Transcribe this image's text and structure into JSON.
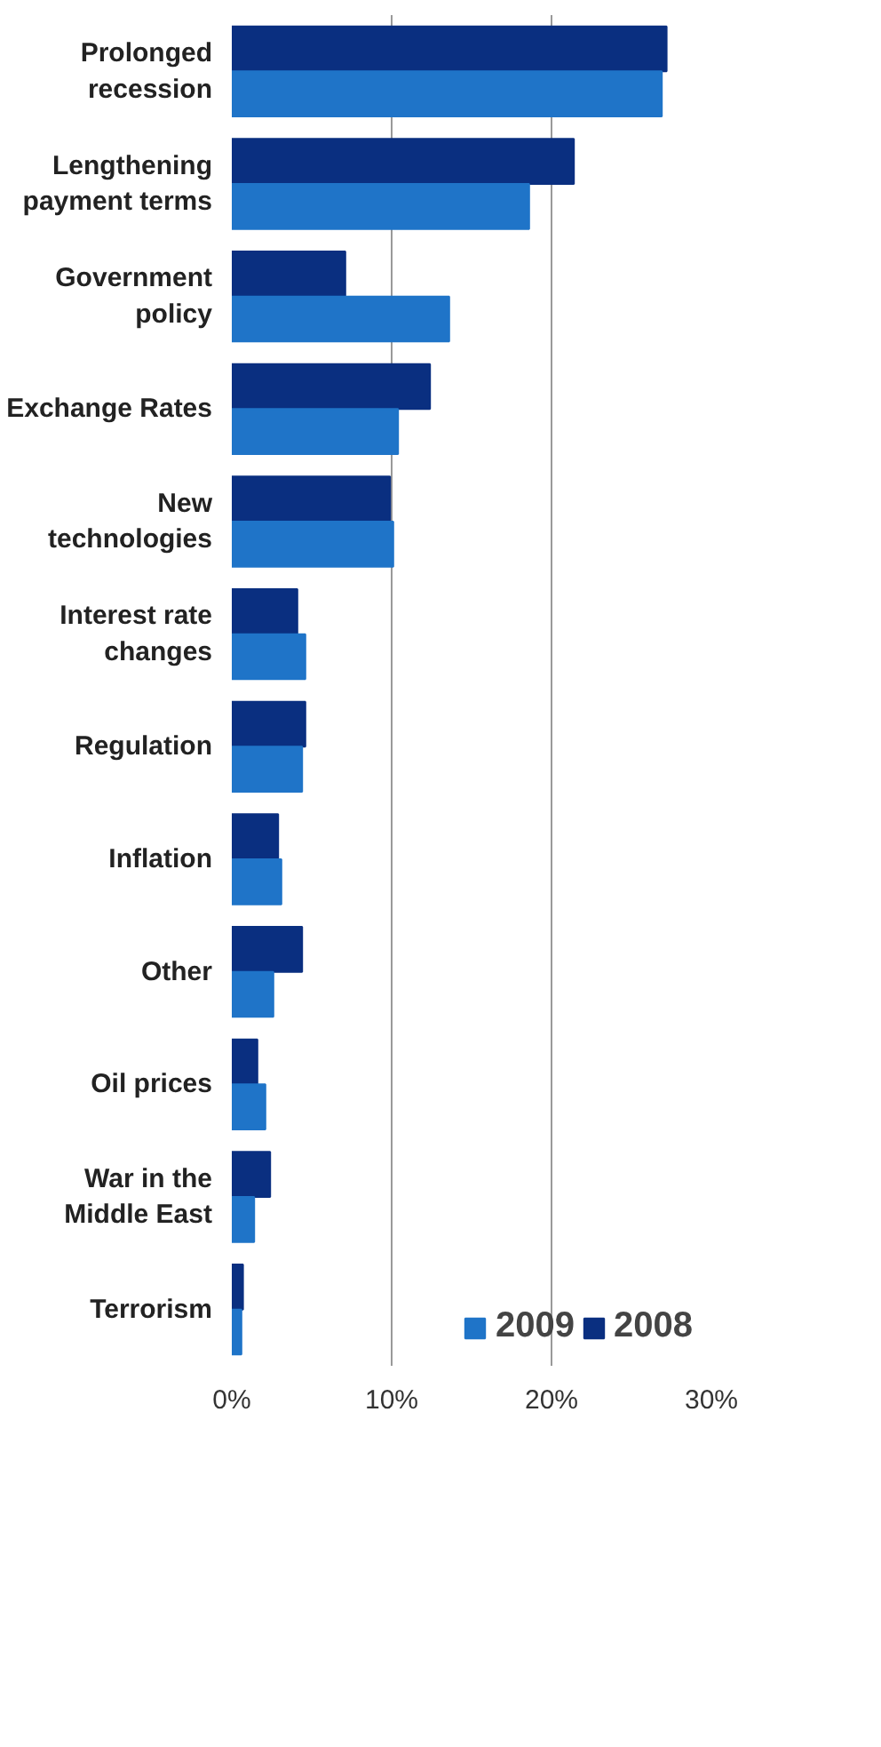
{
  "chart_data": {
    "type": "bar",
    "orientation": "horizontal",
    "categories": [
      "Prolonged\nrecession",
      "Lengthening\npayment terms",
      "Government\npolicy",
      "Exchange Rates",
      "New\ntechnologies",
      "Interest rate\nchanges",
      "Regulation",
      "Inflation",
      "Other",
      "Oil prices",
      "War in the\nMiddle East",
      "Terrorism"
    ],
    "series": [
      {
        "name": "2008",
        "color": "#0a2f80",
        "values": [
          27.2,
          21.4,
          7.1,
          12.4,
          9.9,
          4.1,
          4.6,
          2.9,
          4.4,
          1.6,
          2.4,
          0.7
        ]
      },
      {
        "name": "2009",
        "color": "#1f74c8",
        "values": [
          26.9,
          18.6,
          13.6,
          10.4,
          10.1,
          4.6,
          4.4,
          3.1,
          2.6,
          2.1,
          1.4,
          0.6
        ]
      }
    ],
    "xlim": [
      0,
      30
    ],
    "xticks": [
      {
        "value": 0,
        "label": "0%"
      },
      {
        "value": 10,
        "label": "10%"
      },
      {
        "value": 20,
        "label": "20%"
      },
      {
        "value": 30,
        "label": "30%"
      }
    ],
    "grid": "x",
    "legend": "bottom"
  }
}
